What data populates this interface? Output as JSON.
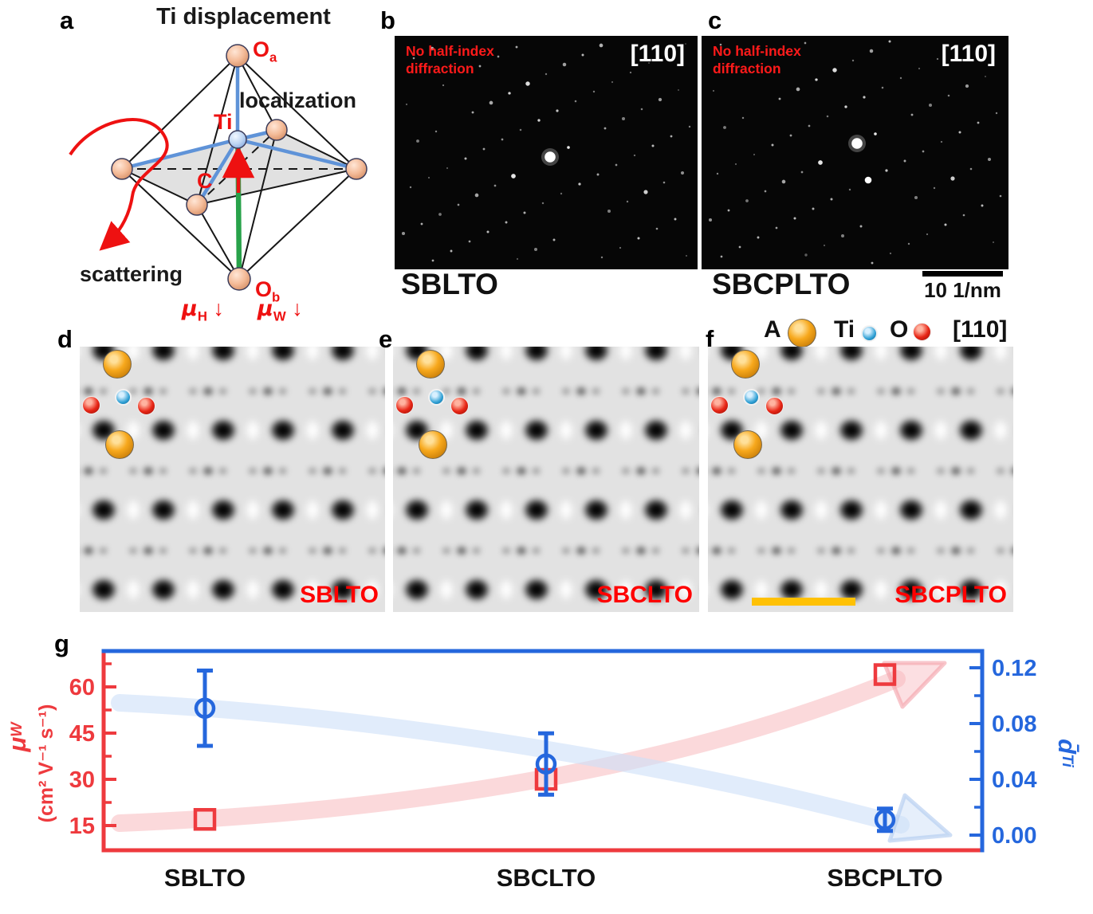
{
  "panel_a": {
    "letter": "a",
    "title": "Ti displacement",
    "localization": "localization",
    "scattering": "scattering",
    "ti_label": "Ti",
    "o_symbol": "O",
    "o_a_sub": "a",
    "o_b_sub": "b",
    "c_label": "C",
    "mu_symbol": "μ",
    "mu_h_sub": "H",
    "mu_w_sub": "W",
    "down_arrow": "↓"
  },
  "panel_b": {
    "letter": "b",
    "no_half_line1": "No half-index",
    "no_half_line2": "diffraction",
    "zone_axis": "[110]",
    "sample": "SBLTO"
  },
  "panel_c": {
    "letter": "c",
    "no_half_line1": "No half-index",
    "no_half_line2": "diffraction",
    "zone_axis": "[110]",
    "sample": "SBCPLTO",
    "scalebar_label": "10 1/nm"
  },
  "panel_d": {
    "letter": "d",
    "sample": "SBLTO"
  },
  "panel_e": {
    "letter": "e",
    "sample": "SBCLTO"
  },
  "panel_f": {
    "letter": "f",
    "sample": "SBCPLTO",
    "legend": {
      "a_label": "A",
      "ti_label": "Ti",
      "o_label": "O",
      "zone_axis": "[110]"
    }
  },
  "panel_g": {
    "letter": "g"
  },
  "colors": {
    "accent_red": "#ee3a3e",
    "accent_blue": "#2567dd",
    "label_red": "#ff0000",
    "scalebar_yellow": "#ffc104",
    "atom_a": "#f7a81c",
    "atom_ti": "#2e9fd4",
    "atom_o": "#e82616"
  },
  "chart_data": {
    "type": "scatter",
    "categories": [
      "SBLTO",
      "SBCLTO",
      "SBCPLTO"
    ],
    "series": [
      {
        "name": "mu_W mobility",
        "axis": "left",
        "marker": "open-square",
        "color": "#ee3a3e",
        "values": [
          17,
          30,
          64
        ]
      },
      {
        "name": "d_Ti displacement",
        "axis": "right",
        "marker": "open-circle",
        "color": "#2567dd",
        "values": [
          0.091,
          0.051,
          0.011
        ],
        "errors": [
          0.027,
          0.022,
          0.008
        ]
      }
    ],
    "left_axis": {
      "symbol": "μ",
      "symbol_sub": "W",
      "units": "(cm² V⁻¹ s⁻¹)",
      "ticks": [
        "15",
        "30",
        "45",
        "60"
      ],
      "tick_values": [
        15,
        30,
        45,
        60
      ],
      "minor_tick_values": [
        22.5,
        37.5,
        52.5,
        67.5
      ],
      "range": [
        7,
        72
      ],
      "color": "#ee3a3e"
    },
    "right_axis": {
      "symbol": "d̄",
      "symbol_sub": "Ti",
      "ticks": [
        "0.00",
        "0.04",
        "0.08",
        "0.12"
      ],
      "tick_values": [
        0,
        0.04,
        0.08,
        0.12
      ],
      "minor_tick_values": [
        0.02,
        0.06,
        0.1
      ],
      "range": [
        -0.011,
        0.132
      ],
      "color": "#2567dd"
    },
    "trend_annotations": [
      {
        "name": "mobility-increase",
        "color_hint": "light-red",
        "direction": "up-right"
      },
      {
        "name": "displacement-decrease",
        "color_hint": "light-blue",
        "direction": "down-right"
      }
    ],
    "grid": false,
    "legend_position": "none"
  }
}
